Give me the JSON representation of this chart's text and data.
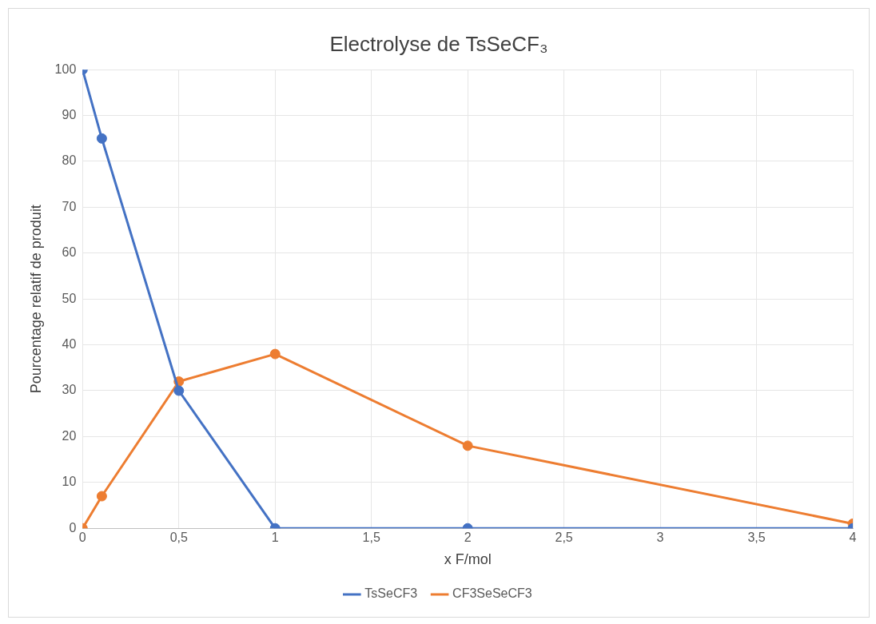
{
  "chart_data": {
    "type": "line",
    "title": "Electrolyse de TsSeCF₃",
    "xlabel": "x F/mol",
    "ylabel": "Pourcentage relatif de produit",
    "x": [
      0,
      0.1,
      0.5,
      1,
      2,
      4
    ],
    "series": [
      {
        "name": "TsSeCF3",
        "color": "#4472c4",
        "values": [
          100,
          85,
          30,
          0,
          0,
          0
        ]
      },
      {
        "name": "CF3SeSeCF3",
        "color": "#ed7d31",
        "values": [
          0,
          7,
          32,
          38,
          18,
          1
        ]
      }
    ],
    "xlim": [
      0,
      4
    ],
    "xticks": [
      0,
      {
        "value": 0.5,
        "label": "0,5"
      },
      1,
      {
        "value": 1.5,
        "label": "1,5"
      },
      2,
      {
        "value": 2.5,
        "label": "2,5"
      },
      3,
      {
        "value": 3.5,
        "label": "3,5"
      },
      4
    ],
    "ylim": [
      0,
      100
    ],
    "yticks": [
      0,
      10,
      20,
      30,
      40,
      50,
      60,
      70,
      80,
      90,
      100
    ],
    "grid": true,
    "legend": "bottom",
    "marker": "circle",
    "line_style": "solid"
  }
}
